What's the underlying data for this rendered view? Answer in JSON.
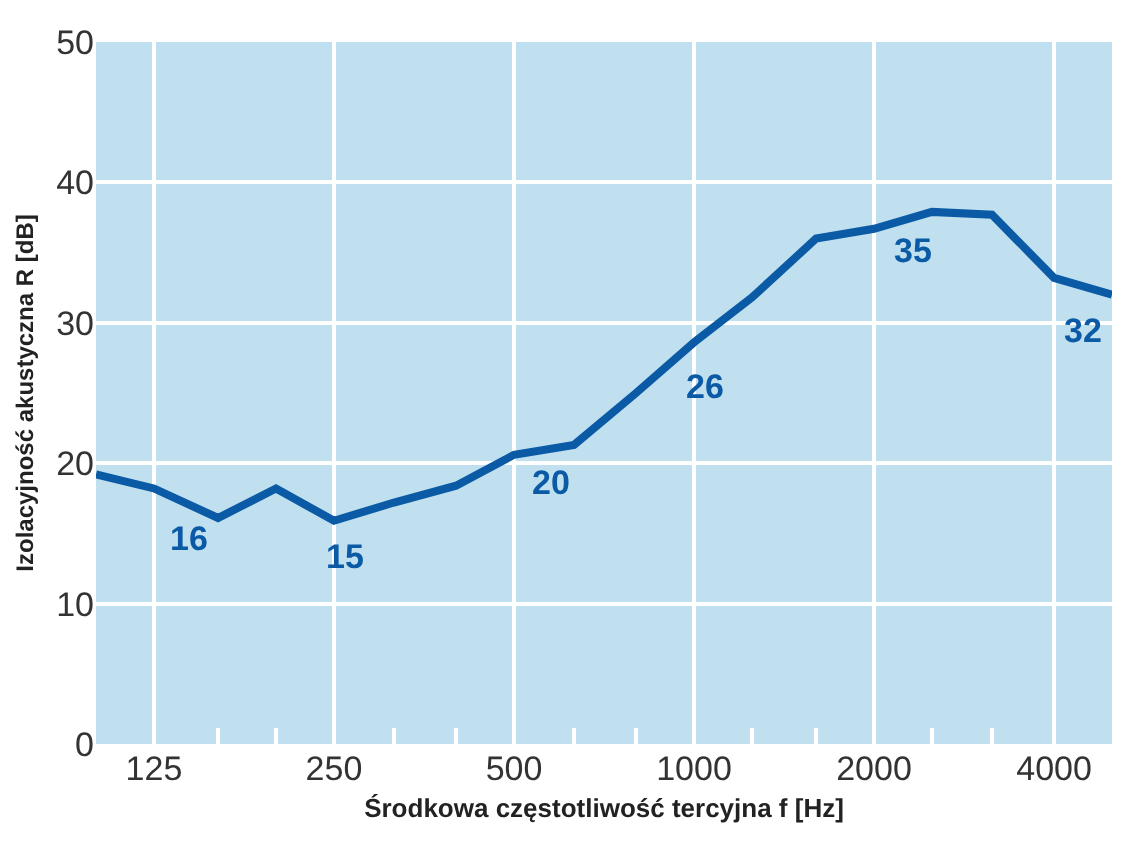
{
  "chart_data": {
    "type": "line",
    "xlabel": "Środkowa częstotliwość tercyjna f [Hz]",
    "ylabel": "Izolacyjność akustyczna R [dB]",
    "x": [
      100,
      125,
      160,
      200,
      250,
      315,
      400,
      500,
      630,
      800,
      1000,
      1250,
      1600,
      2000,
      2500,
      3150,
      4000,
      5000
    ],
    "series": [
      {
        "color": "#0a5aa6",
        "values": [
          19.2,
          18.2,
          16.1,
          18.2,
          15.9,
          17.2,
          18.4,
          20.6,
          21.3,
          25.0,
          28.6,
          31.8,
          36.0,
          36.7,
          37.9,
          37.7,
          33.2,
          32.0
        ]
      }
    ],
    "log": "x",
    "xlim": [
      100,
      5000
    ],
    "xticks": [
      125,
      250,
      500,
      1000,
      2000,
      4000,
      {
        "value": 160,
        "label": null
      },
      {
        "value": 200,
        "label": null
      },
      {
        "value": 315,
        "label": null
      },
      {
        "value": 400,
        "label": null
      },
      {
        "value": 630,
        "label": null
      },
      {
        "value": 800,
        "label": null
      },
      {
        "value": 1250,
        "label": null
      },
      {
        "value": 1600,
        "label": null
      },
      {
        "value": 2500,
        "label": null
      },
      {
        "value": 3150,
        "label": null
      }
    ],
    "ylim": [
      0,
      50
    ],
    "yticks": [
      0,
      10,
      20,
      30,
      40,
      50
    ],
    "grid": true,
    "marker": "none",
    "line_style": "solid",
    "annotations": [
      "16",
      "15",
      "20",
      "26",
      "35",
      "32"
    ]
  }
}
